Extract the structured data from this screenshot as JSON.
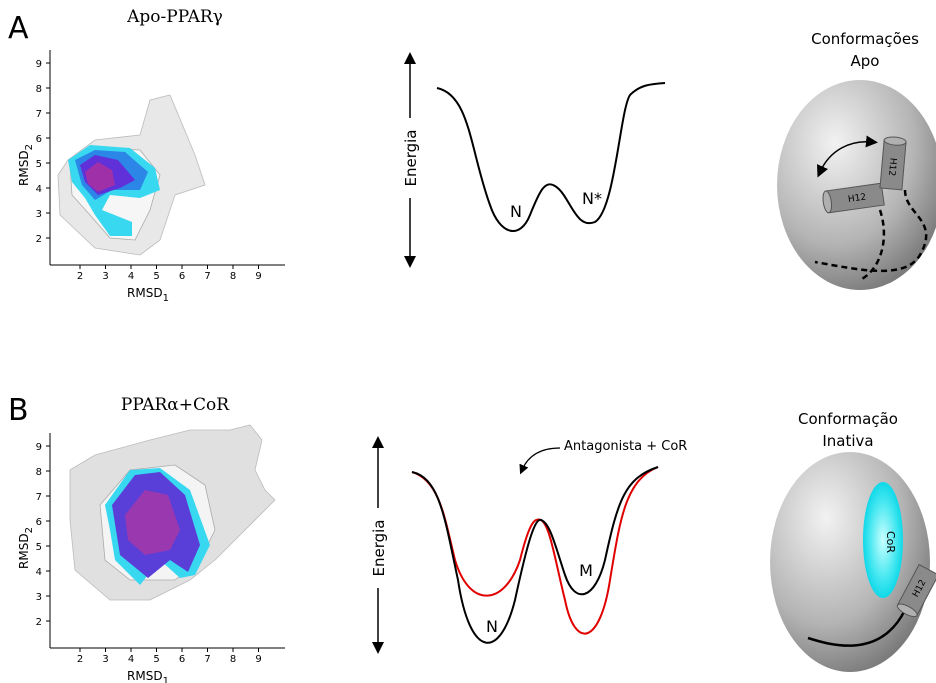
{
  "panels": [
    {
      "label": "A",
      "plot": {
        "title": "Apo-PPARγ",
        "x_label": {
          "text": "RMSD",
          "sub": "1"
        },
        "y_label": {
          "text": "RMSD",
          "sub": "2"
        },
        "xticks": [
          2,
          3,
          4,
          5,
          6,
          7,
          8,
          9
        ],
        "yticks": [
          2,
          3,
          4,
          5,
          6,
          7,
          8,
          9
        ]
      },
      "energy": {
        "axis_label": "Energia",
        "states": [
          "N",
          "N*"
        ]
      },
      "model": {
        "title": [
          "Conformações",
          "Apo"
        ],
        "helices": [
          "H12",
          "H12"
        ]
      }
    },
    {
      "label": "B",
      "plot": {
        "title": "PPARα+CoR",
        "x_label": {
          "text": "RMSD",
          "sub": "1"
        },
        "y_label": {
          "text": "RMSD",
          "sub": "2"
        },
        "xticks": [
          2,
          3,
          4,
          5,
          6,
          7,
          8,
          9
        ],
        "yticks": [
          2,
          3,
          4,
          5,
          6,
          7,
          8,
          9
        ]
      },
      "energy": {
        "axis_label": "Energia",
        "annotation": "Antagonista + CoR",
        "states": [
          "N",
          "M"
        ]
      },
      "model": {
        "title": [
          "Conformação",
          "Inativa"
        ],
        "cofactor": "CoR",
        "helices": [
          "H12"
        ]
      }
    }
  ]
}
